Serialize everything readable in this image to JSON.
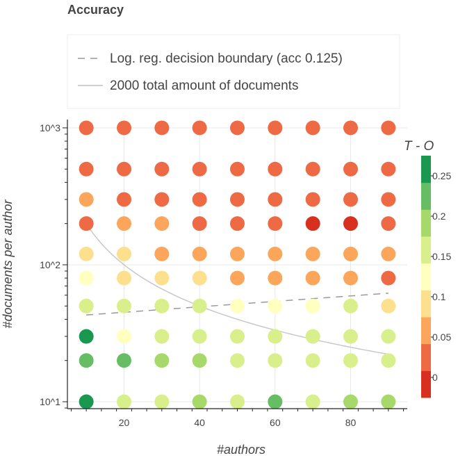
{
  "chart_data": {
    "type": "scatter",
    "title": "Accuracy",
    "xlabel": "#authors",
    "ylabel": "#documents per author",
    "xlim": [
      5,
      95
    ],
    "ylim": [
      8.9,
      1150
    ],
    "yscale": "log",
    "x_ticks": [
      20,
      40,
      60,
      80
    ],
    "y_ticks": [
      {
        "value": 10,
        "label": "10^1"
      },
      {
        "value": 100,
        "label": "10^2"
      },
      {
        "value": 1000,
        "label": "10^3"
      }
    ],
    "grid": true,
    "legend": {
      "placement": "top",
      "entries": [
        {
          "label": "Log. reg. decision boundary (acc 0.125)",
          "style": "dashed",
          "color": "#999999"
        },
        {
          "label": "2000 total amount of documents",
          "style": "solid",
          "color": "#c0c0c0"
        }
      ]
    },
    "colorbar": {
      "title": "T - O",
      "min": -0.025,
      "max": 0.275,
      "ticks": [
        0,
        0.05,
        0.1,
        0.15,
        0.2,
        0.25
      ],
      "tick_labels": [
        "0",
        "0.05",
        "0.1",
        "0.15",
        "0.2",
        "0.25"
      ],
      "bands": [
        "#d7301f",
        "#ee6a45",
        "#fba65a",
        "#fde08d",
        "#ffffbf",
        "#d9ef8b",
        "#a6d96a",
        "#66bd63",
        "#1a9850"
      ]
    },
    "x": [
      10,
      20,
      30,
      40,
      50,
      60,
      70,
      80,
      90
    ],
    "y": [
      10,
      20,
      30,
      50,
      80,
      120,
      200,
      300,
      500,
      1000
    ],
    "values": [
      [
        0.26,
        0.15,
        0.15,
        0.18,
        0.16,
        0.21,
        0.16,
        0.19,
        0.2
      ],
      [
        0.21,
        0.21,
        0.19,
        0.19,
        0.16,
        0.17,
        0.16,
        0.16,
        0.17
      ],
      [
        0.25,
        0.13,
        0.16,
        0.16,
        0.16,
        0.16,
        0.16,
        0.16,
        0.16
      ],
      [
        0.15,
        0.15,
        0.15,
        0.15,
        0.13,
        0.13,
        0.11,
        0.15,
        0.08
      ],
      [
        0.11,
        0.1,
        0.09,
        0.09,
        0.07,
        0.07,
        0.05,
        0.05,
        0.04
      ],
      [
        0.08,
        0.08,
        0.07,
        0.07,
        0.07,
        0.07,
        0.06,
        0.06,
        0.05
      ],
      [
        0.04,
        0.06,
        0.05,
        0.04,
        0.04,
        0.04,
        0.0,
        0.0,
        0.03
      ],
      [
        0.06,
        0.04,
        0.02,
        0.03,
        0.02,
        0.01,
        0.01,
        0.01,
        0.01
      ],
      [
        0.01,
        0.04,
        0.02,
        0.01,
        0.01,
        0.01,
        0.01,
        0.01,
        0.01
      ],
      [
        0.01,
        0.01,
        0.01,
        0.01,
        0.01,
        0.01,
        0.01,
        0.01,
        0.01
      ]
    ],
    "decision_boundary": {
      "x": [
        10,
        90
      ],
      "y": [
        43,
        62
      ]
    },
    "total_documents_curve": {
      "total": 2000,
      "x_range": [
        10,
        90
      ]
    }
  }
}
